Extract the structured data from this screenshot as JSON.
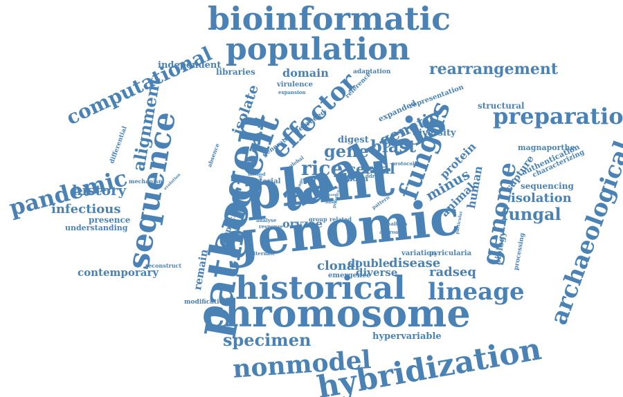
{
  "color": "#4a82b5",
  "words": [
    "genomic",
    "plant",
    "pathogen",
    "chromosome",
    "historical",
    "analysis",
    "ancient",
    "sequence",
    "fungus",
    "genome",
    "hybridization",
    "population",
    "bioinformatic",
    "nonmodel",
    "preparation",
    "archaeological",
    "lineage",
    "effector",
    "computational",
    "pandemic",
    "specimen",
    "rice",
    "gene",
    "blast",
    "rearrangement",
    "alignment",
    "genetic",
    "isolate",
    "cereal",
    "minus",
    "fungal",
    "history",
    "infectious",
    "protein",
    "disease",
    "domain",
    "isolation",
    "clonal",
    "double",
    "diverse",
    "radseq",
    "contemporary",
    "remain",
    "human",
    "animal",
    "hypervariable",
    "capture",
    "digest",
    "independent",
    "libraries",
    "oryzae",
    "diversity",
    "structural",
    "expanded",
    "representation",
    "sequencing",
    "emergence",
    "biology",
    "presence",
    "understanding",
    "specific",
    "adna",
    "variation",
    "pyricularia",
    "authentication",
    "characterizing",
    "magnaporthe",
    "virulence",
    "reference",
    "adaptation",
    "degraded",
    "generate",
    "material",
    "mechanism",
    "absence",
    "differential",
    "processing",
    "modification",
    "reconstruct",
    "alternate",
    "global",
    "group",
    "related",
    "approach",
    "thaliana",
    "protocol",
    "ddrad",
    "response",
    "analyse",
    "particular",
    "pattern",
    "practice",
    "evolution",
    "expansion",
    "support",
    "method",
    "host",
    "basic",
    "change",
    "limit",
    "tool",
    "base",
    "leaf"
  ]
}
